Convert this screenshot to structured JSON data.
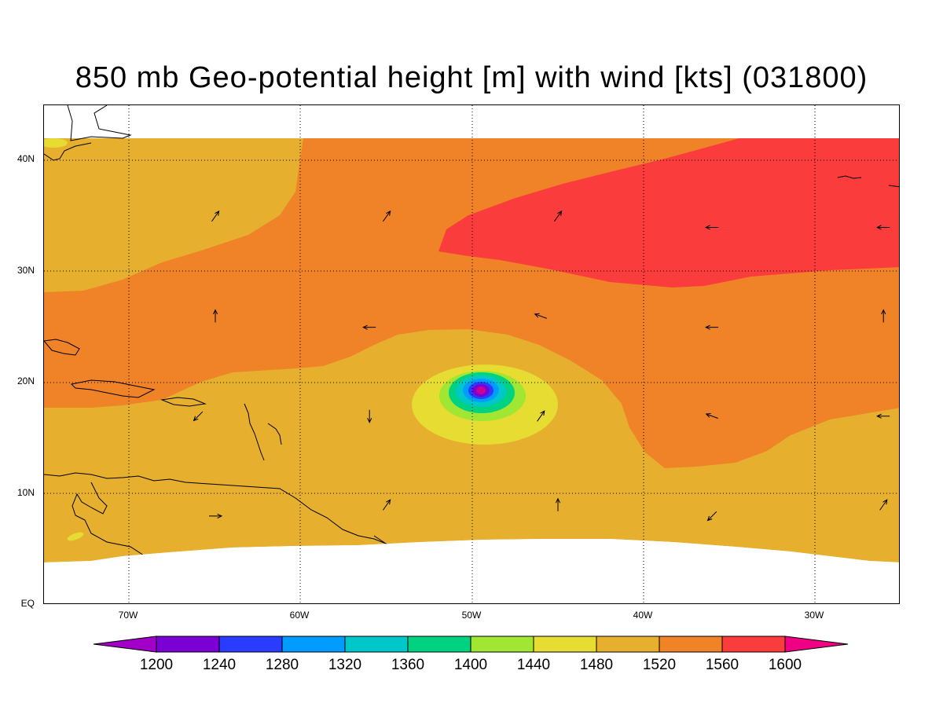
{
  "title": "850 mb Geo-potential height [m] with wind [kts] (031800)",
  "y_ticks": [
    "40N",
    "30N",
    "20N",
    "10N",
    "EQ"
  ],
  "x_ticks": [
    "70W",
    "60W",
    "50W",
    "40W",
    "30W"
  ],
  "colorbar": {
    "labels": [
      "1200",
      "1240",
      "1280",
      "1320",
      "1360",
      "1400",
      "1440",
      "1480",
      "1520",
      "1560",
      "1600"
    ],
    "colors": [
      "#a200c8",
      "#7a00d4",
      "#2a3cff",
      "#009cff",
      "#00c8c8",
      "#00d282",
      "#a0e632",
      "#e6dc32",
      "#e6af2d",
      "#f08228",
      "#fa3c3c",
      "#f00082"
    ]
  },
  "chart_data": {
    "type": "heatmap",
    "variable": "850 mb Geo-potential height [m]",
    "overlay": "wind vectors [kts]",
    "valid_time": "031800",
    "lon_range": [
      -75,
      -25
    ],
    "lat_range": [
      0,
      45
    ],
    "contour_levels": [
      1200,
      1240,
      1280,
      1320,
      1360,
      1400,
      1440,
      1480,
      1520,
      1560,
      1600
    ],
    "cyclone_center": {
      "lon": -49.5,
      "lat": 19.2,
      "min_height_band": 1200
    },
    "high_center_band": 1560,
    "wind_vectors": [
      {
        "lon": -65,
        "lat": 35,
        "dir": "NE"
      },
      {
        "lon": -55,
        "lat": 35,
        "dir": "NE"
      },
      {
        "lon": -45,
        "lat": 35,
        "dir": "NE"
      },
      {
        "lon": -36,
        "lat": 34,
        "dir": "W"
      },
      {
        "lon": -26,
        "lat": 34,
        "dir": "W"
      },
      {
        "lon": -65,
        "lat": 26,
        "dir": "N"
      },
      {
        "lon": -56,
        "lat": 25,
        "dir": "W"
      },
      {
        "lon": -46,
        "lat": 26,
        "dir": "WNW"
      },
      {
        "lon": -36,
        "lat": 25,
        "dir": "W"
      },
      {
        "lon": -26,
        "lat": 26,
        "dir": "N"
      },
      {
        "lon": -66,
        "lat": 17,
        "dir": "SW"
      },
      {
        "lon": -56,
        "lat": 17,
        "dir": "S"
      },
      {
        "lon": -46,
        "lat": 17,
        "dir": "NE"
      },
      {
        "lon": -36,
        "lat": 17,
        "dir": "WNW"
      },
      {
        "lon": -26,
        "lat": 17,
        "dir": "W"
      },
      {
        "lon": -65,
        "lat": 8,
        "dir": "E"
      },
      {
        "lon": -55,
        "lat": 9,
        "dir": "NE"
      },
      {
        "lon": -45,
        "lat": 9,
        "dir": "N"
      },
      {
        "lon": -36,
        "lat": 8,
        "dir": "SW"
      },
      {
        "lon": -26,
        "lat": 9,
        "dir": "NE"
      }
    ]
  }
}
